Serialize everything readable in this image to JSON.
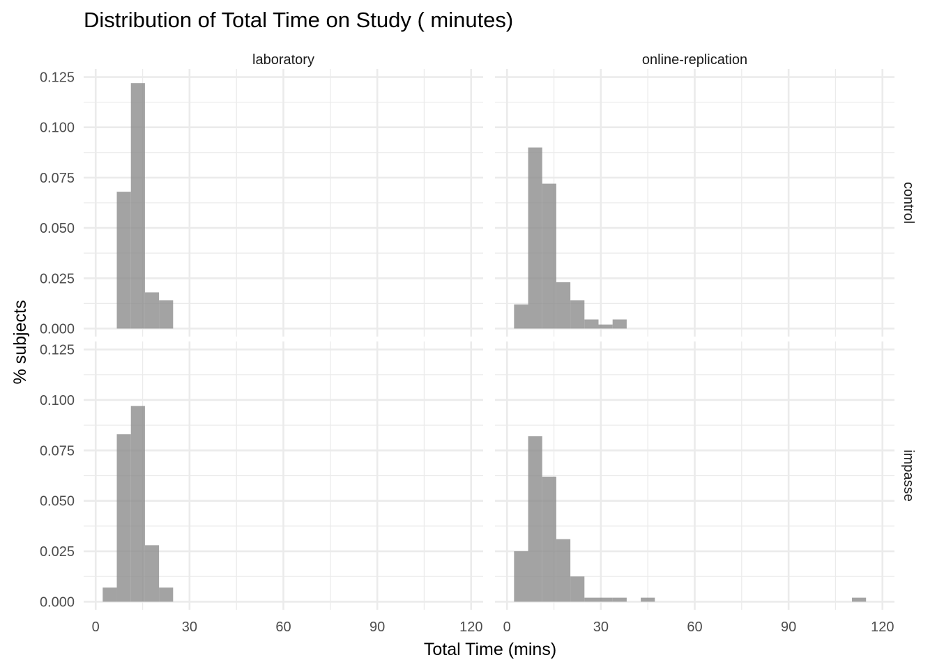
{
  "chart_data": {
    "type": "bar",
    "title": "Distribution of Total Time on Study ( minutes)",
    "xlabel": "Total Time (mins)",
    "ylabel": "% subjects",
    "xlim": [
      0,
      120
    ],
    "ylim": [
      0,
      0.125
    ],
    "x_ticks": [
      "0",
      "30",
      "60",
      "90",
      "120"
    ],
    "y_ticks": [
      "0.000",
      "0.025",
      "0.050",
      "0.075",
      "0.100",
      "0.125"
    ],
    "bin_width": 4.5,
    "columns": [
      "laboratory",
      "online-replication"
    ],
    "rows": [
      "control",
      "impasse"
    ],
    "colors": {
      "bar": "#8c8c8c",
      "grid": "#ebebeb"
    },
    "panels": [
      {
        "column": "laboratory",
        "row": "control",
        "bins": [
          {
            "x0": 6.75,
            "x1": 11.25,
            "y": 0.068
          },
          {
            "x0": 11.25,
            "x1": 15.75,
            "y": 0.122
          },
          {
            "x0": 15.75,
            "x1": 20.25,
            "y": 0.018
          },
          {
            "x0": 20.25,
            "x1": 24.75,
            "y": 0.014
          }
        ]
      },
      {
        "column": "online-replication",
        "row": "control",
        "bins": [
          {
            "x0": 2.25,
            "x1": 6.75,
            "y": 0.012
          },
          {
            "x0": 6.75,
            "x1": 11.25,
            "y": 0.09
          },
          {
            "x0": 11.25,
            "x1": 15.75,
            "y": 0.072
          },
          {
            "x0": 15.75,
            "x1": 20.25,
            "y": 0.023
          },
          {
            "x0": 20.25,
            "x1": 24.75,
            "y": 0.014
          },
          {
            "x0": 24.75,
            "x1": 29.25,
            "y": 0.0045
          },
          {
            "x0": 29.25,
            "x1": 33.75,
            "y": 0.002
          },
          {
            "x0": 33.75,
            "x1": 38.25,
            "y": 0.0045
          }
        ]
      },
      {
        "column": "laboratory",
        "row": "impasse",
        "bins": [
          {
            "x0": 2.25,
            "x1": 6.75,
            "y": 0.007
          },
          {
            "x0": 6.75,
            "x1": 11.25,
            "y": 0.083
          },
          {
            "x0": 11.25,
            "x1": 15.75,
            "y": 0.097
          },
          {
            "x0": 15.75,
            "x1": 20.25,
            "y": 0.028
          },
          {
            "x0": 20.25,
            "x1": 24.75,
            "y": 0.007
          }
        ]
      },
      {
        "column": "online-replication",
        "row": "impasse",
        "bins": [
          {
            "x0": 2.25,
            "x1": 6.75,
            "y": 0.025
          },
          {
            "x0": 6.75,
            "x1": 11.25,
            "y": 0.082
          },
          {
            "x0": 11.25,
            "x1": 15.75,
            "y": 0.062
          },
          {
            "x0": 15.75,
            "x1": 20.25,
            "y": 0.031
          },
          {
            "x0": 20.25,
            "x1": 24.75,
            "y": 0.0125
          },
          {
            "x0": 24.75,
            "x1": 29.25,
            "y": 0.002
          },
          {
            "x0": 29.25,
            "x1": 33.75,
            "y": 0.002
          },
          {
            "x0": 33.75,
            "x1": 38.25,
            "y": 0.002
          },
          {
            "x0": 42.75,
            "x1": 47.25,
            "y": 0.002
          },
          {
            "x0": 110.25,
            "x1": 114.75,
            "y": 0.002
          }
        ]
      }
    ]
  }
}
